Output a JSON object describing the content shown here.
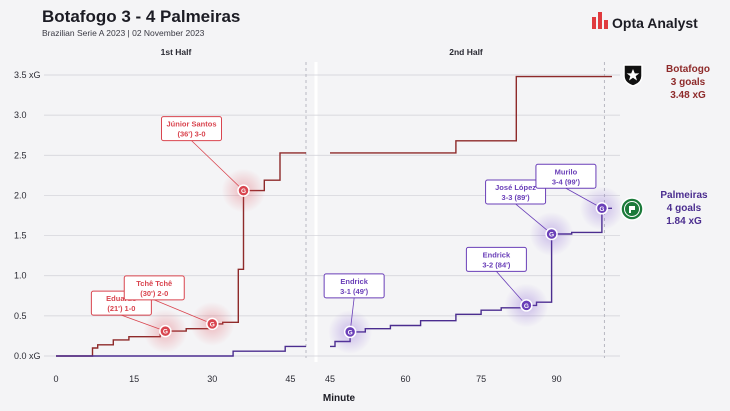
{
  "header": {
    "title": "Botafogo 3 - 4 Palmeiras",
    "subtitle": "Brazilian Serie A 2023  |  02 November 2023",
    "brand": "Opta Analyst"
  },
  "colors": {
    "botafogo": "#8e2a2a",
    "botafogo_goal": "#d9454f",
    "palmeiras": "#4b2d8f",
    "palmeiras_goal": "#6a3fb8",
    "grid": "#cfcfd6",
    "background": "#f4f4f6"
  },
  "chart_data": {
    "type": "line",
    "step": true,
    "x_axis_title": "Minute",
    "ylim": [
      0,
      3.5
    ],
    "y_ticks": [
      0,
      0.5,
      1.0,
      1.5,
      2.0,
      2.5,
      3.0,
      3.5
    ],
    "y_tick_labels": [
      "0.0 xG",
      "0.5",
      "1.0",
      "1.5",
      "2.0",
      "2.5",
      "3.0",
      "3.5 xG"
    ],
    "panels": [
      {
        "label": "1st Half",
        "xlim": [
          0,
          48
        ],
        "x_ticks": [
          0,
          15,
          30,
          45
        ],
        "end_marker": 48
      },
      {
        "label": "2nd Half",
        "xlim": [
          45,
          101
        ],
        "x_ticks": [
          45,
          60,
          75,
          90
        ],
        "end_marker": 99.5
      }
    ],
    "series": [
      {
        "name": "Botafogo",
        "color_key": "botafogo",
        "summary": [
          "Botafogo",
          "3 goals",
          "3.48 xG"
        ],
        "points_first_half": [
          [
            0,
            0
          ],
          [
            7,
            0
          ],
          [
            7,
            0.1
          ],
          [
            8,
            0.1
          ],
          [
            8,
            0.14
          ],
          [
            11,
            0.14
          ],
          [
            11,
            0.2
          ],
          [
            14,
            0.2
          ],
          [
            14,
            0.24
          ],
          [
            20,
            0.24
          ],
          [
            20,
            0.28
          ],
          [
            21,
            0.28
          ],
          [
            21,
            0.31
          ],
          [
            25,
            0.31
          ],
          [
            25,
            0.34
          ],
          [
            30,
            0.34
          ],
          [
            30,
            0.4
          ],
          [
            32,
            0.4
          ],
          [
            32,
            0.42
          ],
          [
            35,
            0.42
          ],
          [
            35,
            1.08
          ],
          [
            36,
            1.08
          ],
          [
            36,
            2.06
          ],
          [
            40,
            2.06
          ],
          [
            40,
            2.19
          ],
          [
            43,
            2.19
          ],
          [
            43,
            2.53
          ],
          [
            48,
            2.53
          ]
        ],
        "points_second_half": [
          [
            45,
            2.53
          ],
          [
            70,
            2.53
          ],
          [
            70,
            2.68
          ],
          [
            82,
            2.68
          ],
          [
            82,
            3.48
          ],
          [
            101,
            3.48
          ]
        ]
      },
      {
        "name": "Palmeiras",
        "color_key": "palmeiras",
        "summary": [
          "Palmeiras",
          "4 goals",
          "1.84 xG"
        ],
        "points_first_half": [
          [
            0,
            0
          ],
          [
            34,
            0
          ],
          [
            34,
            0.06
          ],
          [
            44,
            0.06
          ],
          [
            44,
            0.12
          ],
          [
            48,
            0.12
          ]
        ],
        "points_second_half": [
          [
            45,
            0.12
          ],
          [
            46,
            0.12
          ],
          [
            46,
            0.18
          ],
          [
            49,
            0.18
          ],
          [
            49,
            0.3
          ],
          [
            52,
            0.3
          ],
          [
            52,
            0.34
          ],
          [
            57,
            0.34
          ],
          [
            57,
            0.38
          ],
          [
            63,
            0.38
          ],
          [
            63,
            0.44
          ],
          [
            70,
            0.44
          ],
          [
            70,
            0.52
          ],
          [
            75,
            0.52
          ],
          [
            75,
            0.57
          ],
          [
            79,
            0.57
          ],
          [
            79,
            0.6
          ],
          [
            84,
            0.6
          ],
          [
            84,
            0.63
          ],
          [
            86,
            0.63
          ],
          [
            86,
            0.67
          ],
          [
            89,
            0.67
          ],
          [
            89,
            1.52
          ],
          [
            93,
            1.52
          ],
          [
            93,
            1.54
          ],
          [
            99,
            1.54
          ],
          [
            99,
            1.84
          ],
          [
            101,
            1.84
          ]
        ]
      }
    ],
    "goals": [
      {
        "team": "Botafogo",
        "panel": 0,
        "minute": 21,
        "xg": 0.31,
        "line1": "Eduardo",
        "line2": "(21') 1-0"
      },
      {
        "team": "Botafogo",
        "panel": 0,
        "minute": 30,
        "xg": 0.4,
        "line1": "Tchê Tchê",
        "line2": "(30') 2-0"
      },
      {
        "team": "Botafogo",
        "panel": 0,
        "minute": 36,
        "xg": 2.06,
        "line1": "Júnior Santos",
        "line2": "(36') 3-0"
      },
      {
        "team": "Palmeiras",
        "panel": 1,
        "minute": 49,
        "xg": 0.3,
        "line1": "Endrick",
        "line2": "3-1 (49')"
      },
      {
        "team": "Palmeiras",
        "panel": 1,
        "minute": 84,
        "xg": 0.63,
        "line1": "Endrick",
        "line2": "3-2 (84')"
      },
      {
        "team": "Palmeiras",
        "panel": 1,
        "minute": 89,
        "xg": 1.52,
        "line1": "José López",
        "line2": "3-3 (89')"
      },
      {
        "team": "Palmeiras",
        "panel": 1,
        "minute": 99,
        "xg": 1.84,
        "line1": "Murilo",
        "line2": "3-4 (99')"
      }
    ],
    "goal_marker_letter": "G"
  }
}
